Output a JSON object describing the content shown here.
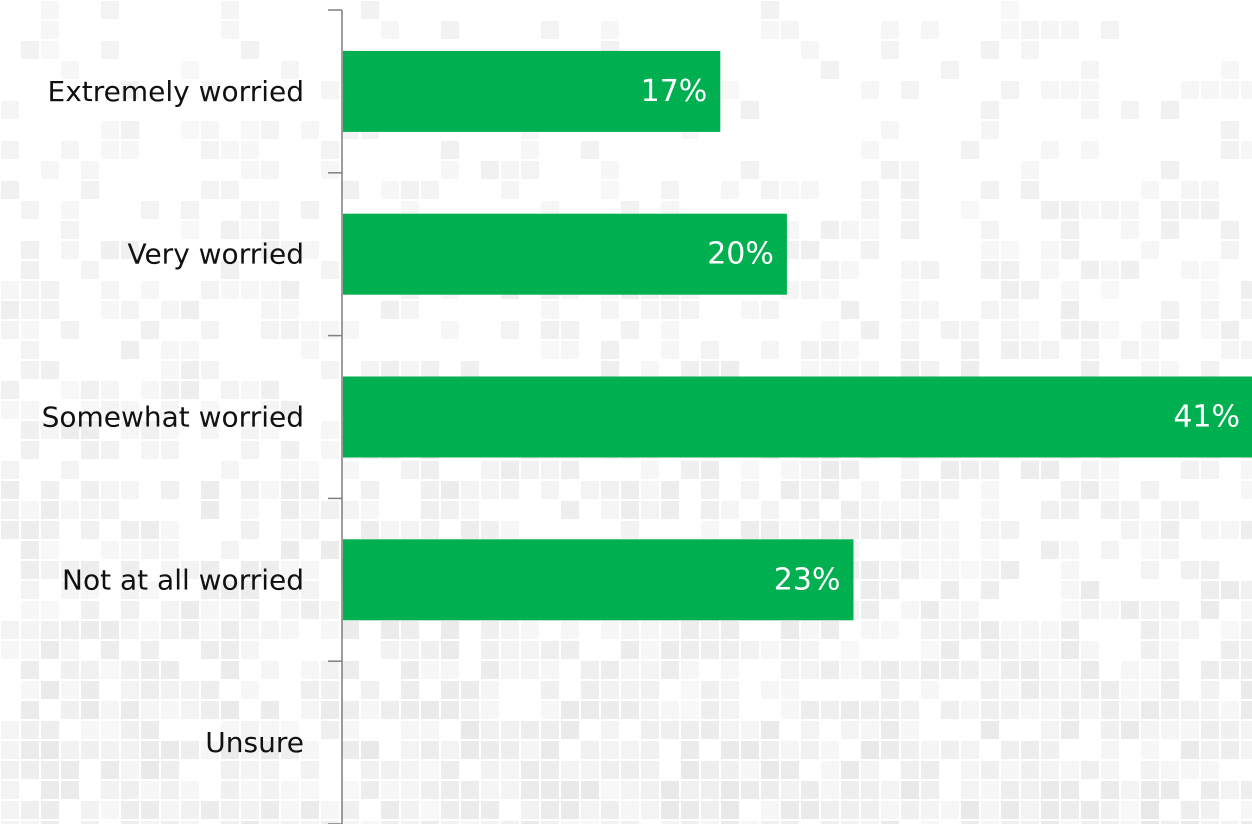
{
  "chart_data": {
    "type": "bar",
    "orientation": "horizontal",
    "categories": [
      "Extremely worried",
      "Very worried",
      "Somewhat worried",
      "Not at all worried",
      "Unsure"
    ],
    "values": [
      17,
      20,
      41,
      23,
      null
    ],
    "data_labels": [
      "17%",
      "20%",
      "41%",
      "23%",
      ""
    ],
    "title": "",
    "xlabel": "",
    "ylabel": "",
    "xlim": [
      0,
      41
    ],
    "grid": false,
    "legend": "none",
    "bar_color": "#00b050",
    "label_color": "#ffffff",
    "text_color": "#111111",
    "background": "mosaic"
  }
}
